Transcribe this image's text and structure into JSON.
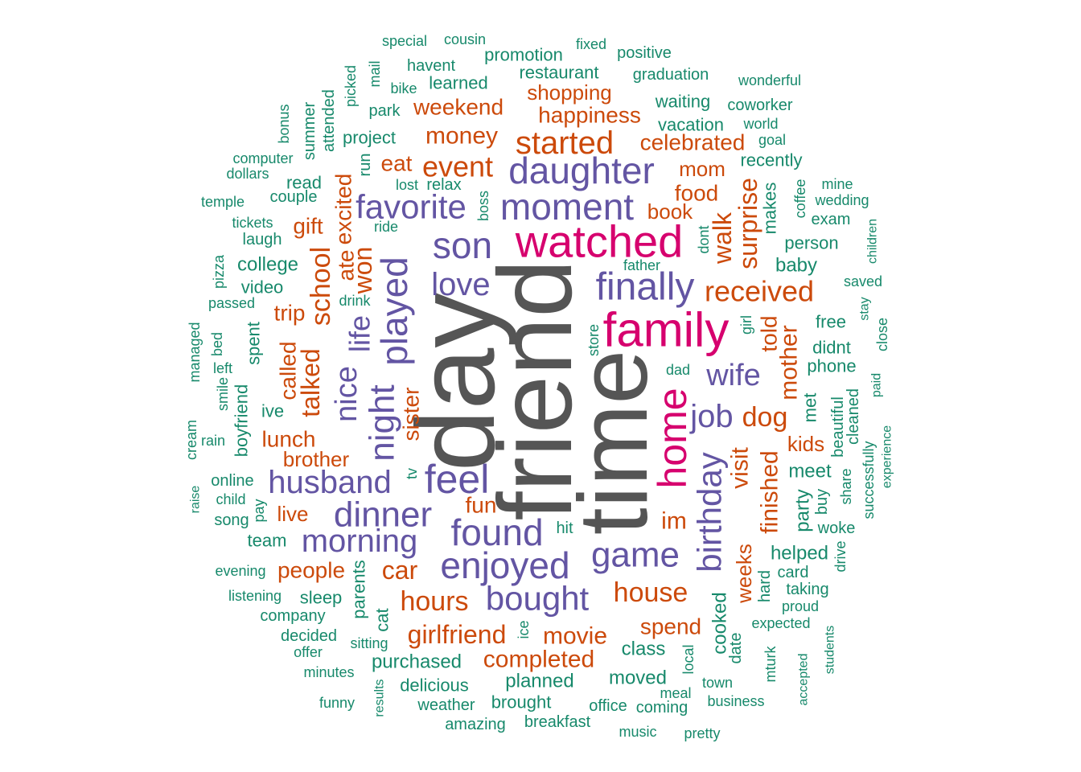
{
  "colors": {
    "top": "#555555",
    "pink": "#d6006e",
    "purple": "#6355a3",
    "orange": "#cc4a0b",
    "green": "#17896b"
  },
  "words": [
    {
      "text": "day",
      "color": "top"
    },
    {
      "text": "friend",
      "color": "top"
    },
    {
      "text": "time",
      "color": "top"
    },
    {
      "text": "watched",
      "color": "pink"
    },
    {
      "text": "family",
      "color": "pink"
    },
    {
      "text": "home",
      "color": "pink"
    },
    {
      "text": "daughter",
      "color": "purple"
    },
    {
      "text": "moment",
      "color": "purple"
    },
    {
      "text": "favorite",
      "color": "purple"
    },
    {
      "text": "son",
      "color": "purple"
    },
    {
      "text": "love",
      "color": "purple"
    },
    {
      "text": "finally",
      "color": "purple"
    },
    {
      "text": "played",
      "color": "purple"
    },
    {
      "text": "life",
      "color": "purple"
    },
    {
      "text": "nice",
      "color": "purple"
    },
    {
      "text": "night",
      "color": "purple"
    },
    {
      "text": "wife",
      "color": "purple"
    },
    {
      "text": "job",
      "color": "purple"
    },
    {
      "text": "husband",
      "color": "purple"
    },
    {
      "text": "feel",
      "color": "purple"
    },
    {
      "text": "dinner",
      "color": "purple"
    },
    {
      "text": "found",
      "color": "purple"
    },
    {
      "text": "morning",
      "color": "purple"
    },
    {
      "text": "enjoyed",
      "color": "purple"
    },
    {
      "text": "game",
      "color": "purple"
    },
    {
      "text": "bought",
      "color": "purple"
    },
    {
      "text": "birthday",
      "color": "purple"
    },
    {
      "text": "started",
      "color": "orange"
    },
    {
      "text": "event",
      "color": "orange"
    },
    {
      "text": "money",
      "color": "orange"
    },
    {
      "text": "weekend",
      "color": "orange"
    },
    {
      "text": "shopping",
      "color": "orange"
    },
    {
      "text": "happiness",
      "color": "orange"
    },
    {
      "text": "celebrated",
      "color": "orange"
    },
    {
      "text": "eat",
      "color": "orange"
    },
    {
      "text": "mom",
      "color": "orange"
    },
    {
      "text": "food",
      "color": "orange"
    },
    {
      "text": "book",
      "color": "orange"
    },
    {
      "text": "gift",
      "color": "orange"
    },
    {
      "text": "school",
      "color": "orange"
    },
    {
      "text": "excited",
      "color": "orange"
    },
    {
      "text": "ate",
      "color": "orange"
    },
    {
      "text": "won",
      "color": "orange"
    },
    {
      "text": "received",
      "color": "orange"
    },
    {
      "text": "surprise",
      "color": "orange"
    },
    {
      "text": "walk",
      "color": "orange"
    },
    {
      "text": "trip",
      "color": "orange"
    },
    {
      "text": "called",
      "color": "orange"
    },
    {
      "text": "talked",
      "color": "orange"
    },
    {
      "text": "sister",
      "color": "orange"
    },
    {
      "text": "told",
      "color": "orange"
    },
    {
      "text": "mother",
      "color": "orange"
    },
    {
      "text": "dog",
      "color": "orange"
    },
    {
      "text": "lunch",
      "color": "orange"
    },
    {
      "text": "brother",
      "color": "orange"
    },
    {
      "text": "visit",
      "color": "orange"
    },
    {
      "text": "finished",
      "color": "orange"
    },
    {
      "text": "fun",
      "color": "orange"
    },
    {
      "text": "live",
      "color": "orange"
    },
    {
      "text": "im",
      "color": "orange"
    },
    {
      "text": "kids",
      "color": "orange"
    },
    {
      "text": "car",
      "color": "orange"
    },
    {
      "text": "people",
      "color": "orange"
    },
    {
      "text": "hours",
      "color": "orange"
    },
    {
      "text": "house",
      "color": "orange"
    },
    {
      "text": "weeks",
      "color": "orange"
    },
    {
      "text": "girlfriend",
      "color": "orange"
    },
    {
      "text": "movie",
      "color": "orange"
    },
    {
      "text": "spend",
      "color": "orange"
    },
    {
      "text": "completed",
      "color": "orange"
    },
    {
      "text": "special",
      "color": "green"
    },
    {
      "text": "cousin",
      "color": "green"
    },
    {
      "text": "fixed",
      "color": "green"
    },
    {
      "text": "positive",
      "color": "green"
    },
    {
      "text": "promotion",
      "color": "green"
    },
    {
      "text": "havent",
      "color": "green"
    },
    {
      "text": "restaurant",
      "color": "green"
    },
    {
      "text": "graduation",
      "color": "green"
    },
    {
      "text": "wonderful",
      "color": "green"
    },
    {
      "text": "picked",
      "color": "green"
    },
    {
      "text": "mail",
      "color": "green"
    },
    {
      "text": "bike",
      "color": "green"
    },
    {
      "text": "learned",
      "color": "green"
    },
    {
      "text": "attended",
      "color": "green"
    },
    {
      "text": "park",
      "color": "green"
    },
    {
      "text": "waiting",
      "color": "green"
    },
    {
      "text": "coworker",
      "color": "green"
    },
    {
      "text": "bonus",
      "color": "green"
    },
    {
      "text": "summer",
      "color": "green"
    },
    {
      "text": "project",
      "color": "green"
    },
    {
      "text": "vacation",
      "color": "green"
    },
    {
      "text": "world",
      "color": "green"
    },
    {
      "text": "computer",
      "color": "green"
    },
    {
      "text": "goal",
      "color": "green"
    },
    {
      "text": "dollars",
      "color": "green"
    },
    {
      "text": "run",
      "color": "green"
    },
    {
      "text": "recently",
      "color": "green"
    },
    {
      "text": "read",
      "color": "green"
    },
    {
      "text": "lost",
      "color": "green"
    },
    {
      "text": "relax",
      "color": "green"
    },
    {
      "text": "coffee",
      "color": "green"
    },
    {
      "text": "mine",
      "color": "green"
    },
    {
      "text": "couple",
      "color": "green"
    },
    {
      "text": "temple",
      "color": "green"
    },
    {
      "text": "boss",
      "color": "green"
    },
    {
      "text": "makes",
      "color": "green"
    },
    {
      "text": "wedding",
      "color": "green"
    },
    {
      "text": "exam",
      "color": "green"
    },
    {
      "text": "tickets",
      "color": "green"
    },
    {
      "text": "ride",
      "color": "green"
    },
    {
      "text": "dont",
      "color": "green"
    },
    {
      "text": "children",
      "color": "green"
    },
    {
      "text": "laugh",
      "color": "green"
    },
    {
      "text": "person",
      "color": "green"
    },
    {
      "text": "pizza",
      "color": "green"
    },
    {
      "text": "college",
      "color": "green"
    },
    {
      "text": "father",
      "color": "green"
    },
    {
      "text": "baby",
      "color": "green"
    },
    {
      "text": "video",
      "color": "green"
    },
    {
      "text": "saved",
      "color": "green"
    },
    {
      "text": "passed",
      "color": "green"
    },
    {
      "text": "drink",
      "color": "green"
    },
    {
      "text": "stay",
      "color": "green"
    },
    {
      "text": "managed",
      "color": "green"
    },
    {
      "text": "spent",
      "color": "green"
    },
    {
      "text": "free",
      "color": "green"
    },
    {
      "text": "bed",
      "color": "green"
    },
    {
      "text": "girl",
      "color": "green"
    },
    {
      "text": "close",
      "color": "green"
    },
    {
      "text": "store",
      "color": "green"
    },
    {
      "text": "didnt",
      "color": "green"
    },
    {
      "text": "left",
      "color": "green"
    },
    {
      "text": "phone",
      "color": "green"
    },
    {
      "text": "dad",
      "color": "green"
    },
    {
      "text": "smile",
      "color": "green"
    },
    {
      "text": "paid",
      "color": "green"
    },
    {
      "text": "ive",
      "color": "green"
    },
    {
      "text": "met",
      "color": "green"
    },
    {
      "text": "cleaned",
      "color": "green"
    },
    {
      "text": "boyfriend",
      "color": "green"
    },
    {
      "text": "beautiful",
      "color": "green"
    },
    {
      "text": "cream",
      "color": "green"
    },
    {
      "text": "rain",
      "color": "green"
    },
    {
      "text": "experience",
      "color": "green"
    },
    {
      "text": "tv",
      "color": "green"
    },
    {
      "text": "meet",
      "color": "green"
    },
    {
      "text": "successfully",
      "color": "green"
    },
    {
      "text": "online",
      "color": "green"
    },
    {
      "text": "share",
      "color": "green"
    },
    {
      "text": "buy",
      "color": "green"
    },
    {
      "text": "raise",
      "color": "green"
    },
    {
      "text": "child",
      "color": "green"
    },
    {
      "text": "party",
      "color": "green"
    },
    {
      "text": "pay",
      "color": "green"
    },
    {
      "text": "song",
      "color": "green"
    },
    {
      "text": "hit",
      "color": "green"
    },
    {
      "text": "woke",
      "color": "green"
    },
    {
      "text": "team",
      "color": "green"
    },
    {
      "text": "drive",
      "color": "green"
    },
    {
      "text": "helped",
      "color": "green"
    },
    {
      "text": "evening",
      "color": "green"
    },
    {
      "text": "card",
      "color": "green"
    },
    {
      "text": "hard",
      "color": "green"
    },
    {
      "text": "listening",
      "color": "green"
    },
    {
      "text": "sleep",
      "color": "green"
    },
    {
      "text": "parents",
      "color": "green"
    },
    {
      "text": "taking",
      "color": "green"
    },
    {
      "text": "proud",
      "color": "green"
    },
    {
      "text": "company",
      "color": "green"
    },
    {
      "text": "cat",
      "color": "green"
    },
    {
      "text": "expected",
      "color": "green"
    },
    {
      "text": "cooked",
      "color": "green"
    },
    {
      "text": "decided",
      "color": "green"
    },
    {
      "text": "ice",
      "color": "green"
    },
    {
      "text": "sitting",
      "color": "green"
    },
    {
      "text": "offer",
      "color": "green"
    },
    {
      "text": "date",
      "color": "green"
    },
    {
      "text": "class",
      "color": "green"
    },
    {
      "text": "students",
      "color": "green"
    },
    {
      "text": "purchased",
      "color": "green"
    },
    {
      "text": "local",
      "color": "green"
    },
    {
      "text": "mturk",
      "color": "green"
    },
    {
      "text": "minutes",
      "color": "green"
    },
    {
      "text": "accepted",
      "color": "green"
    },
    {
      "text": "moved",
      "color": "green"
    },
    {
      "text": "planned",
      "color": "green"
    },
    {
      "text": "results",
      "color": "green"
    },
    {
      "text": "delicious",
      "color": "green"
    },
    {
      "text": "town",
      "color": "green"
    },
    {
      "text": "meal",
      "color": "green"
    },
    {
      "text": "funny",
      "color": "green"
    },
    {
      "text": "brought",
      "color": "green"
    },
    {
      "text": "office",
      "color": "green"
    },
    {
      "text": "business",
      "color": "green"
    },
    {
      "text": "weather",
      "color": "green"
    },
    {
      "text": "coming",
      "color": "green"
    },
    {
      "text": "amazing",
      "color": "green"
    },
    {
      "text": "breakfast",
      "color": "green"
    },
    {
      "text": "music",
      "color": "green"
    },
    {
      "text": "pretty",
      "color": "green"
    }
  ]
}
